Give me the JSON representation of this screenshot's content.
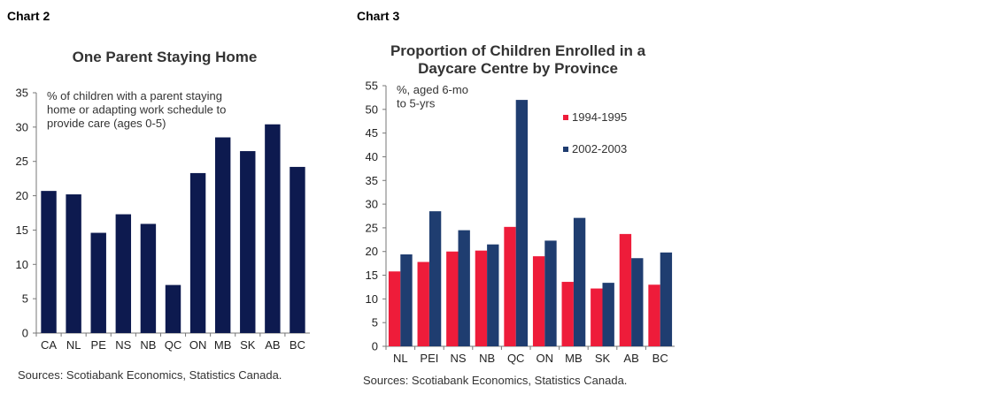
{
  "labels": {
    "left": "Chart 2",
    "right": "Chart 3"
  },
  "chart_data": [
    {
      "type": "bar",
      "title": "One Parent Staying Home",
      "annotation": [
        "% of children with a parent staying",
        "home or adapting work schedule to",
        "provide care (ages 0-5)"
      ],
      "categories": [
        "CA",
        "NL",
        "PE",
        "NS",
        "NB",
        "QC",
        "ON",
        "MB",
        "SK",
        "AB",
        "BC"
      ],
      "series": [
        {
          "name": "",
          "color": "#0d1a4f",
          "values": [
            20.7,
            20.2,
            14.6,
            17.3,
            15.9,
            7.0,
            23.3,
            28.5,
            26.5,
            30.4,
            24.2
          ]
        }
      ],
      "ylim": [
        0,
        35
      ],
      "yticks": [
        "0",
        "5",
        "10",
        "15",
        "20",
        "25",
        "30",
        "35"
      ],
      "source": "Sources: Scotiabank Economics, Statistics Canada."
    },
    {
      "type": "bar",
      "title": [
        "Proportion of Children Enrolled in a",
        "Daycare Centre by Province"
      ],
      "annotation": [
        "%, aged 6-mo",
        "to 5-yrs"
      ],
      "categories": [
        "NL",
        "PEI",
        "NS",
        "NB",
        "QC",
        "ON",
        "MB",
        "SK",
        "AB",
        "BC"
      ],
      "series": [
        {
          "name": "1994-1995",
          "color": "#ee1c3a",
          "values": [
            15.8,
            17.8,
            20.0,
            20.2,
            25.2,
            19.0,
            13.6,
            12.2,
            23.7,
            13.0
          ]
        },
        {
          "name": "2002-2003",
          "color": "#1f3d70",
          "values": [
            19.4,
            28.5,
            24.5,
            21.5,
            52.0,
            22.3,
            27.1,
            13.4,
            18.6,
            19.8
          ]
        }
      ],
      "ylim": [
        0,
        55
      ],
      "yticks": [
        "0",
        "5",
        "10",
        "15",
        "20",
        "25",
        "30",
        "35",
        "40",
        "45",
        "50",
        "55"
      ],
      "source": "Sources: Scotiabank Economics, Statistics Canada."
    }
  ]
}
